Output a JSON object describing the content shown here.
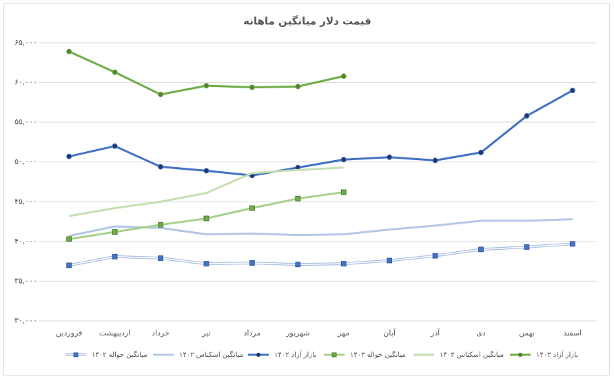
{
  "chart_data": {
    "type": "line",
    "title": "قیمت دلار میانگین ماهانه",
    "categories": [
      "فروردین",
      "اردیبهشت",
      "خرداد",
      "تیر",
      "مرداد",
      "شهریور",
      "مهر",
      "آبان",
      "آذر",
      "دی",
      "بهمن",
      "اسفند"
    ],
    "ylim": [
      30000,
      65000
    ],
    "yticks": [
      {
        "value": 30000,
        "label": "۳۰,۰۰۰"
      },
      {
        "value": 35000,
        "label": "۳۵,۰۰۰"
      },
      {
        "value": 40000,
        "label": "۴۰,۰۰۰"
      },
      {
        "value": 45000,
        "label": "۴۵,۰۰۰"
      },
      {
        "value": 50000,
        "label": "۵۰,۰۰۰"
      },
      {
        "value": 55000,
        "label": "۵۵,۰۰۰"
      },
      {
        "value": 60000,
        "label": "۶۰,۰۰۰"
      },
      {
        "value": 65000,
        "label": "۶۵,۰۰۰"
      }
    ],
    "grid": true,
    "legend": "bottom",
    "series": [
      {
        "name": "میانگین حواله ۱۴۰۲",
        "color": "#4472c4",
        "line_color": "#a9bde3",
        "marker": "square",
        "values": [
          37000,
          38100,
          37900,
          37200,
          37300,
          37100,
          37200,
          37600,
          38200,
          39000,
          39300,
          39700
        ]
      },
      {
        "name": "میانگین اسکناس ۱۴۰۲",
        "color": "#b4c7e7",
        "line_color": "#b4c7e7",
        "marker": null,
        "values": [
          40700,
          41900,
          41700,
          40900,
          41000,
          40800,
          40900,
          41500,
          42000,
          42600,
          42600,
          42800
        ]
      },
      {
        "name": "بازار آزاد ۱۴۰۲",
        "color": "#203864",
        "line_color": "#4472c4",
        "marker": "circle",
        "values": [
          50700,
          52000,
          49400,
          48900,
          48300,
          49300,
          50300,
          50600,
          50200,
          51200,
          55800,
          59000
        ]
      },
      {
        "name": "میانگین حواله ۱۴۰۳",
        "color": "#70ad47",
        "line_color": "#a9d18e",
        "marker": "square",
        "values": [
          40300,
          41200,
          42100,
          42900,
          44200,
          45400,
          46200,
          null,
          null,
          null,
          null,
          null
        ]
      },
      {
        "name": "میانگین اسکناس ۱۴۰۳",
        "color": "#c5e0b4",
        "line_color": "#c5e0b4",
        "marker": null,
        "values": [
          43200,
          44200,
          45000,
          46100,
          48600,
          49000,
          49300,
          null,
          null,
          null,
          null,
          null
        ]
      },
      {
        "name": "بازار آزاد ۱۴۰۳",
        "color": "#548235",
        "line_color": "#70ad47",
        "marker": "circle",
        "values": [
          63900,
          61300,
          58500,
          59600,
          59400,
          59500,
          60800,
          null,
          null,
          null,
          null,
          null
        ]
      }
    ]
  }
}
